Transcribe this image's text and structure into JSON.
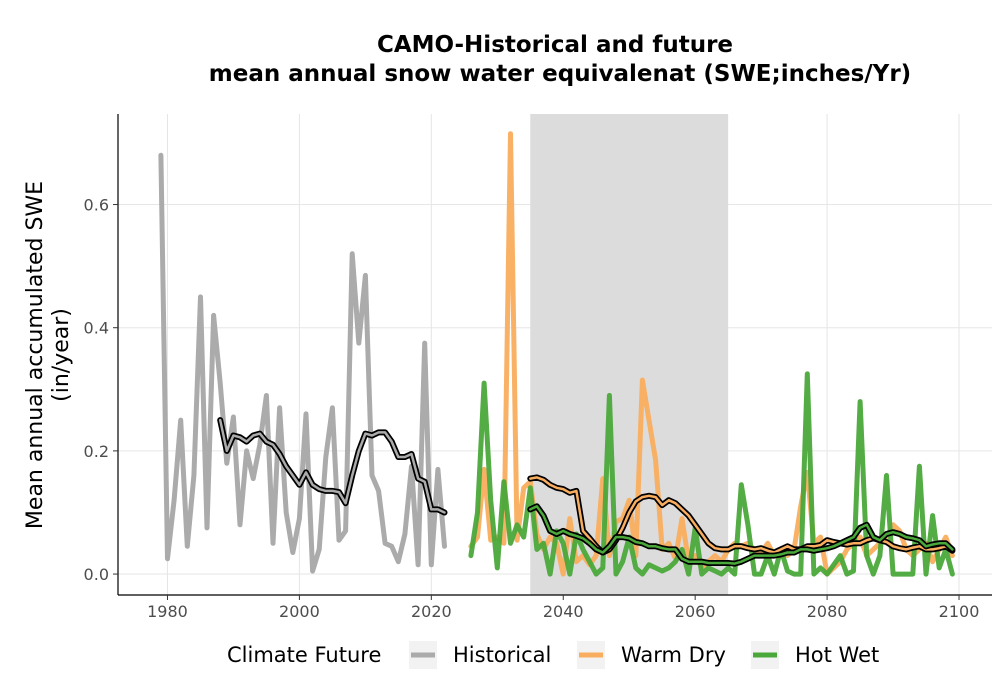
{
  "chart_data": {
    "type": "line",
    "title_line1": "CAMO-Historical and future",
    "title_line2": "mean annual snow water equivalenat (SWE;inches/Yr)",
    "xlabel": "",
    "ylabel_line1": "Mean annual accumulated SWE",
    "ylabel_line2": "(in/year)",
    "xlim": [
      1972.5,
      2105
    ],
    "ylim": [
      -0.034,
      0.747
    ],
    "x_ticks": [
      1980,
      2000,
      2020,
      2040,
      2060,
      2080,
      2100
    ],
    "y_ticks": [
      0.0,
      0.2,
      0.4,
      0.6
    ],
    "y_tick_labels": [
      "0.0",
      "0.2",
      "0.4",
      "0.6"
    ],
    "grid": true,
    "shaded_period": [
      2035,
      2065
    ],
    "legend": {
      "title": "Climate Future",
      "placement": "bottom",
      "entries": [
        "Historical",
        "Warm Dry",
        "Hot Wet"
      ]
    },
    "colors": {
      "Historical": "#ababab",
      "Warm Dry": "#f9ad5e",
      "Hot Wet": "#4aa83a",
      "shading": "#dcdcdc",
      "smooth": "#000000"
    },
    "series": [
      {
        "name": "Historical",
        "x": [
          1979,
          1980,
          1981,
          1982,
          1983,
          1984,
          1985,
          1986,
          1987,
          1988,
          1989,
          1990,
          1991,
          1992,
          1993,
          1994,
          1995,
          1996,
          1997,
          1998,
          1999,
          2000,
          2001,
          2002,
          2003,
          2004,
          2005,
          2006,
          2007,
          2008,
          2009,
          2010,
          2011,
          2012,
          2013,
          2014,
          2015,
          2016,
          2017,
          2018,
          2019,
          2020,
          2021,
          2022
        ],
        "values": [
          0.68,
          0.025,
          0.12,
          0.25,
          0.045,
          0.16,
          0.45,
          0.075,
          0.42,
          0.31,
          0.18,
          0.255,
          0.08,
          0.2,
          0.155,
          0.21,
          0.29,
          0.05,
          0.27,
          0.1,
          0.035,
          0.09,
          0.26,
          0.005,
          0.04,
          0.19,
          0.27,
          0.055,
          0.07,
          0.52,
          0.375,
          0.485,
          0.16,
          0.135,
          0.05,
          0.045,
          0.02,
          0.065,
          0.175,
          0.015,
          0.375,
          0.015,
          0.17,
          0.045
        ]
      },
      {
        "name": "Warm Dry",
        "x": [
          2026,
          2027,
          2028,
          2029,
          2030,
          2031,
          2032,
          2033,
          2034,
          2035,
          2036,
          2037,
          2038,
          2039,
          2040,
          2041,
          2042,
          2043,
          2044,
          2045,
          2046,
          2047,
          2048,
          2049,
          2050,
          2051,
          2052,
          2053,
          2054,
          2055,
          2056,
          2057,
          2058,
          2059,
          2060,
          2061,
          2062,
          2063,
          2064,
          2065,
          2066,
          2067,
          2068,
          2069,
          2070,
          2071,
          2072,
          2073,
          2074,
          2075,
          2076,
          2077,
          2078,
          2079,
          2080,
          2081,
          2082,
          2083,
          2084,
          2085,
          2086,
          2087,
          2088,
          2089,
          2090,
          2091,
          2092,
          2093,
          2094,
          2095,
          2096,
          2097,
          2098,
          2099
        ],
        "values": [
          0.045,
          0.06,
          0.17,
          0.055,
          0.06,
          0.05,
          0.715,
          0.055,
          0.14,
          0.15,
          0.065,
          0.04,
          0.06,
          0.05,
          0.0,
          0.09,
          0.02,
          0.03,
          0.015,
          0.03,
          0.155,
          0.03,
          0.085,
          0.09,
          0.12,
          0.03,
          0.315,
          0.25,
          0.185,
          0.04,
          0.05,
          0.025,
          0.09,
          0.02,
          0.03,
          0.01,
          0.02,
          0.03,
          0.02,
          0.04,
          0.05,
          0.045,
          0.05,
          0.04,
          0.035,
          0.05,
          0.03,
          0.04,
          0.03,
          0.04,
          0.11,
          0.165,
          0.05,
          0.06,
          0.0,
          0.01,
          0.02,
          0.04,
          0.05,
          0.06,
          0.03,
          0.04,
          0.05,
          0.06,
          0.08,
          0.07,
          0.04,
          0.03,
          0.04,
          0.05,
          0.02,
          0.04,
          0.06,
          0.03
        ]
      },
      {
        "name": "Hot Wet",
        "x": [
          2026,
          2027,
          2028,
          2029,
          2030,
          2031,
          2032,
          2033,
          2034,
          2035,
          2036,
          2037,
          2038,
          2039,
          2040,
          2041,
          2042,
          2043,
          2044,
          2045,
          2046,
          2047,
          2048,
          2049,
          2050,
          2051,
          2052,
          2053,
          2054,
          2055,
          2056,
          2057,
          2058,
          2059,
          2060,
          2061,
          2062,
          2063,
          2064,
          2065,
          2066,
          2067,
          2068,
          2069,
          2070,
          2071,
          2072,
          2073,
          2074,
          2075,
          2076,
          2077,
          2078,
          2079,
          2080,
          2081,
          2082,
          2083,
          2084,
          2085,
          2086,
          2087,
          2088,
          2089,
          2090,
          2091,
          2092,
          2093,
          2094,
          2095,
          2096,
          2097,
          2098,
          2099
        ],
        "values": [
          0.03,
          0.1,
          0.31,
          0.12,
          0.01,
          0.15,
          0.05,
          0.08,
          0.06,
          0.14,
          0.04,
          0.05,
          0.0,
          0.07,
          0.05,
          0.0,
          0.065,
          0.04,
          0.02,
          0.0,
          0.01,
          0.29,
          0.0,
          0.02,
          0.06,
          0.01,
          0.0,
          0.015,
          0.01,
          0.005,
          0.01,
          0.02,
          0.04,
          0.0,
          0.075,
          0.0,
          0.01,
          0.005,
          0.0,
          0.01,
          0.0,
          0.145,
          0.08,
          0.0,
          0.0,
          0.03,
          0.0,
          0.04,
          0.005,
          0.0,
          0.0,
          0.325,
          0.0,
          0.01,
          0.0,
          0.015,
          0.03,
          0.0,
          0.005,
          0.28,
          0.03,
          0.0,
          0.03,
          0.16,
          0.0,
          0.0,
          0.0,
          0.0,
          0.175,
          0.0,
          0.095,
          0.01,
          0.04,
          0.0
        ]
      }
    ],
    "smoothed": [
      {
        "name": "Historical",
        "x": [
          1988,
          1989,
          1990,
          1991,
          1992,
          1993,
          1994,
          1995,
          1996,
          1997,
          1998,
          1999,
          2000,
          2001,
          2002,
          2003,
          2004,
          2005,
          2006,
          2007,
          2008,
          2009,
          2010,
          2011,
          2012,
          2013,
          2014,
          2015,
          2016,
          2017,
          2018,
          2019,
          2020,
          2021,
          2022
        ],
        "values": [
          0.25,
          0.2,
          0.225,
          0.222,
          0.215,
          0.225,
          0.228,
          0.215,
          0.21,
          0.195,
          0.175,
          0.16,
          0.145,
          0.165,
          0.145,
          0.138,
          0.135,
          0.135,
          0.133,
          0.115,
          0.16,
          0.2,
          0.228,
          0.225,
          0.23,
          0.23,
          0.215,
          0.19,
          0.19,
          0.195,
          0.155,
          0.15,
          0.105,
          0.105,
          0.1
        ]
      },
      {
        "name": "Warm Dry",
        "x": [
          2035,
          2036,
          2037,
          2038,
          2039,
          2040,
          2041,
          2042,
          2043,
          2044,
          2045,
          2046,
          2047,
          2048,
          2049,
          2050,
          2051,
          2052,
          2053,
          2054,
          2055,
          2056,
          2057,
          2058,
          2059,
          2060,
          2061,
          2062,
          2063,
          2064,
          2065,
          2066,
          2067,
          2068,
          2069,
          2070,
          2071,
          2072,
          2073,
          2074,
          2075,
          2076,
          2077,
          2078,
          2079,
          2080,
          2081,
          2082,
          2083,
          2084,
          2085,
          2086,
          2087,
          2088,
          2089,
          2090,
          2091,
          2092,
          2093,
          2094,
          2095,
          2096,
          2097,
          2098,
          2099
        ],
        "values": [
          0.155,
          0.157,
          0.153,
          0.145,
          0.14,
          0.138,
          0.132,
          0.135,
          0.07,
          0.058,
          0.045,
          0.035,
          0.04,
          0.055,
          0.075,
          0.1,
          0.118,
          0.125,
          0.127,
          0.125,
          0.112,
          0.12,
          0.115,
          0.105,
          0.095,
          0.08,
          0.065,
          0.05,
          0.042,
          0.04,
          0.04,
          0.045,
          0.045,
          0.042,
          0.04,
          0.042,
          0.038,
          0.035,
          0.04,
          0.045,
          0.04,
          0.04,
          0.045,
          0.045,
          0.047,
          0.055,
          0.052,
          0.05,
          0.048,
          0.05,
          0.05,
          0.055,
          0.058,
          0.055,
          0.052,
          0.045,
          0.042,
          0.04,
          0.043,
          0.045,
          0.04,
          0.04,
          0.042,
          0.045,
          0.038
        ]
      },
      {
        "name": "Hot Wet",
        "x": [
          2035,
          2036,
          2037,
          2038,
          2039,
          2040,
          2041,
          2042,
          2043,
          2044,
          2045,
          2046,
          2047,
          2048,
          2049,
          2050,
          2051,
          2052,
          2053,
          2054,
          2055,
          2056,
          2057,
          2058,
          2059,
          2060,
          2061,
          2062,
          2063,
          2064,
          2065,
          2066,
          2067,
          2068,
          2069,
          2070,
          2071,
          2072,
          2073,
          2074,
          2075,
          2076,
          2077,
          2078,
          2079,
          2080,
          2081,
          2082,
          2083,
          2084,
          2085,
          2086,
          2087,
          2088,
          2089,
          2090,
          2091,
          2092,
          2093,
          2094,
          2095,
          2096,
          2097,
          2098,
          2099
        ],
        "values": [
          0.105,
          0.11,
          0.095,
          0.07,
          0.065,
          0.07,
          0.065,
          0.062,
          0.058,
          0.05,
          0.04,
          0.035,
          0.045,
          0.06,
          0.06,
          0.058,
          0.052,
          0.05,
          0.045,
          0.045,
          0.042,
          0.04,
          0.04,
          0.025,
          0.02,
          0.02,
          0.02,
          0.018,
          0.018,
          0.018,
          0.018,
          0.017,
          0.02,
          0.025,
          0.03,
          0.03,
          0.03,
          0.03,
          0.032,
          0.035,
          0.035,
          0.04,
          0.04,
          0.038,
          0.04,
          0.042,
          0.045,
          0.05,
          0.055,
          0.06,
          0.075,
          0.08,
          0.06,
          0.055,
          0.065,
          0.068,
          0.065,
          0.06,
          0.058,
          0.055,
          0.045,
          0.048,
          0.05,
          0.05,
          0.04
        ]
      }
    ]
  }
}
